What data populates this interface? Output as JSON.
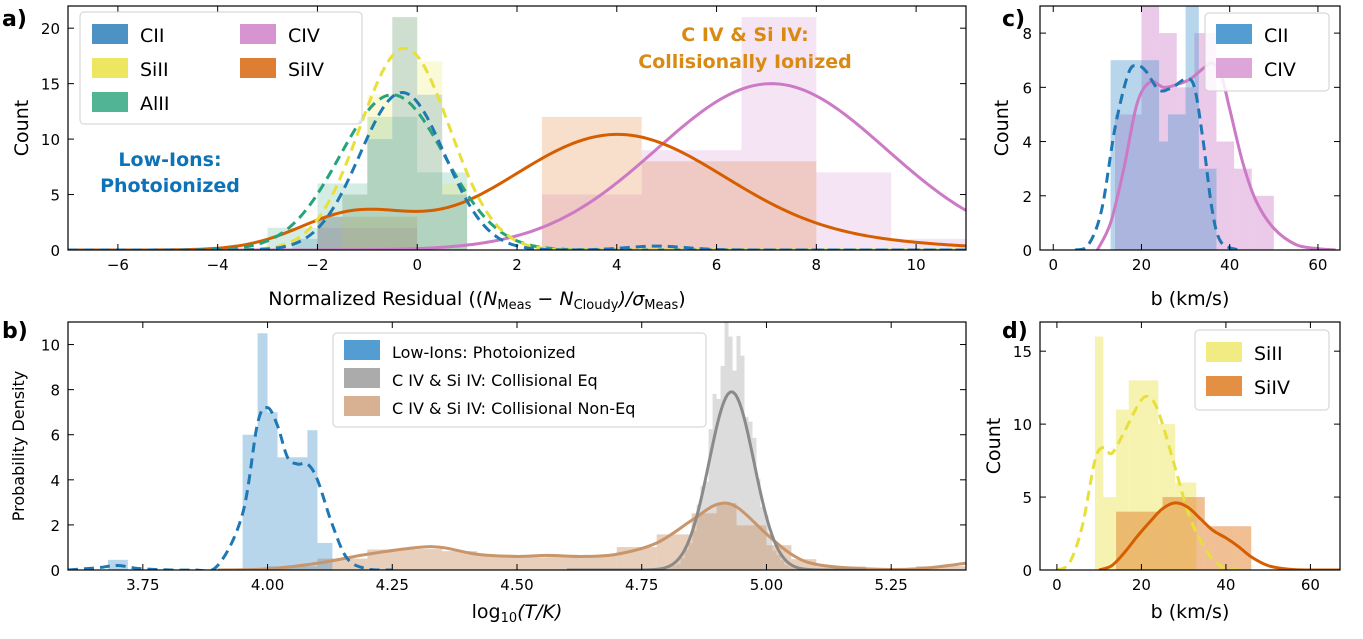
{
  "colors": {
    "CII": "#1f77b4",
    "SiII": "#e8e03a",
    "AlII": "#26a37a",
    "CIV": "#cc79c6",
    "SiIV": "#d55e00",
    "LowIons": "#1f77b4",
    "CollEq": "#8a8a8a",
    "CollNonEq": "#c9956a",
    "bluetext": "#0d72b8",
    "orangetext": "#d98a12"
  },
  "chart_data": [
    {
      "panel": "a)",
      "type": "histogram+kde",
      "xlabel_main": "Normalized Residual ((",
      "xlabel_n": "N",
      "xlabel_sub1": "Meas",
      "xlabel_minus": " − ",
      "xlabel_sub2": "Cloudy",
      "xlabel_sigma": ")/σ",
      "xlabel_sub3": "Meas",
      "xlabel_end": ")",
      "ylabel": "Count",
      "xlim": [
        -7,
        11
      ],
      "ylim": [
        0,
        22
      ],
      "xticks": [
        -6,
        -4,
        -2,
        0,
        2,
        4,
        6,
        8,
        10
      ],
      "xtick_labels": [
        "−6",
        "−4",
        "−2",
        "0",
        "2",
        "4",
        "6",
        "8",
        "10"
      ],
      "yticks": [
        0,
        5,
        10,
        15,
        20
      ],
      "ytick_labels": [
        "0",
        "5",
        "10",
        "15",
        "20"
      ],
      "legend": [
        "CII",
        "SiII",
        "AlII",
        "CIV",
        "SiIV"
      ],
      "annotation_low": [
        "Low-Ions:",
        "Photoionized"
      ],
      "annotation_high": [
        "C IV & Si IV:",
        "Collisionally Ionized"
      ],
      "series": [
        {
          "name": "CII",
          "kde_mean": -0.3,
          "kde_peak": 14.2,
          "kde_sigma": 0.85,
          "bins": [
            [
              -2.5,
              -2.0,
              1
            ],
            [
              -2.0,
              -1.5,
              3
            ],
            [
              -1.5,
              -1.0,
              5
            ],
            [
              -1.0,
              -0.5,
              10
            ],
            [
              -0.5,
              0.0,
              21
            ],
            [
              0.0,
              0.5,
              14
            ],
            [
              0.5,
              1.0,
              5
            ]
          ]
        },
        {
          "name": "SiII",
          "kde_mean": -0.25,
          "kde_peak": 18.2,
          "kde_sigma": 0.9,
          "bins": [
            [
              -1.5,
              -1.0,
              5
            ],
            [
              -1.0,
              -0.5,
              14
            ],
            [
              -0.5,
              0.0,
              21
            ],
            [
              0.0,
              0.5,
              17
            ],
            [
              0.5,
              1.0,
              6
            ]
          ]
        },
        {
          "name": "AlII",
          "kde_mean": -0.5,
          "kde_peak": 14.0,
          "kde_sigma": 1.05,
          "bins": [
            [
              -3.0,
              -2.0,
              2
            ],
            [
              -2.0,
              -1.0,
              6
            ],
            [
              -1.0,
              0.0,
              12
            ],
            [
              0.0,
              1.0,
              7
            ]
          ]
        },
        {
          "name": "CIV",
          "kde_mean": 7.1,
          "kde_peak": 15.0,
          "kde_sigma": 2.3,
          "bins": [
            [
              -2.0,
              0.0,
              2
            ],
            [
              2.5,
              4.5,
              5
            ],
            [
              4.5,
              6.5,
              9
            ],
            [
              6.5,
              8.0,
              21
            ],
            [
              8.0,
              9.5,
              7
            ],
            [
              9.5,
              11.0,
              1
            ]
          ]
        },
        {
          "name": "SiIV",
          "kde_mean": 4.0,
          "kde_peak": 10.4,
          "kde_sigma": 2.2,
          "bins": [
            [
              -2.0,
              0.0,
              3
            ],
            [
              2.5,
              4.5,
              12
            ],
            [
              4.5,
              6.5,
              8
            ],
            [
              6.5,
              8.0,
              8
            ]
          ]
        }
      ]
    },
    {
      "panel": "b)",
      "type": "histogram+kde",
      "xlabel_pre": "log",
      "xlabel_sub": "10",
      "xlabel_post": "(T/K)",
      "ylabel": "Probability Density",
      "xlim": [
        3.6,
        5.4
      ],
      "ylim": [
        0,
        11
      ],
      "xticks": [
        3.75,
        4.0,
        4.25,
        4.5,
        4.75,
        5.0,
        5.25
      ],
      "xtick_labels": [
        "3.75",
        "4.00",
        "4.25",
        "4.50",
        "4.75",
        "5.00",
        "5.25"
      ],
      "yticks": [
        0,
        2,
        4,
        6,
        8,
        10
      ],
      "ytick_labels": [
        "0",
        "2",
        "4",
        "6",
        "8",
        "10"
      ],
      "legend": [
        "Low-Ions: Photoionized",
        "C IV & Si IV: Collisional Eq",
        "C IV & Si IV: Collisional Non-Eq"
      ],
      "series": [
        {
          "name": "Low-Ions: Photoionized",
          "kde_points": [
            [
              3.6,
              0.0
            ],
            [
              3.66,
              0.1
            ],
            [
              3.7,
              0.2
            ],
            [
              3.75,
              0.05
            ],
            [
              3.85,
              0.0
            ],
            [
              3.9,
              0.2
            ],
            [
              3.95,
              2.5
            ],
            [
              3.98,
              6.5
            ],
            [
              4.0,
              7.2
            ],
            [
              4.02,
              6.4
            ],
            [
              4.04,
              5.0
            ],
            [
              4.06,
              4.7
            ],
            [
              4.08,
              4.7
            ],
            [
              4.1,
              4.0
            ],
            [
              4.13,
              2.0
            ],
            [
              4.16,
              0.5
            ],
            [
              4.2,
              0.05
            ],
            [
              4.25,
              0.0
            ]
          ],
          "bins": [
            [
              3.68,
              3.72,
              0.45
            ],
            [
              3.95,
              3.98,
              6.0
            ],
            [
              3.98,
              4.0,
              10.5
            ],
            [
              4.0,
              4.02,
              7.0
            ],
            [
              4.02,
              4.04,
              5.0
            ],
            [
              4.04,
              4.06,
              5.0
            ],
            [
              4.06,
              4.08,
              5.0
            ],
            [
              4.08,
              4.1,
              6.2
            ],
            [
              4.1,
              4.13,
              1.2
            ]
          ]
        },
        {
          "name": "C IV & Si IV: Collisional Eq",
          "kde_mean": 4.93,
          "kde_peak": 7.9,
          "kde_sigma": 0.045
        },
        {
          "name": "C IV & Si IV: Collisional Non-Eq",
          "kde_points": [
            [
              3.9,
              0.0
            ],
            [
              4.0,
              0.05
            ],
            [
              4.1,
              0.3
            ],
            [
              4.2,
              0.7
            ],
            [
              4.3,
              1.0
            ],
            [
              4.35,
              1.0
            ],
            [
              4.42,
              0.7
            ],
            [
              4.5,
              0.6
            ],
            [
              4.56,
              0.65
            ],
            [
              4.63,
              0.6
            ],
            [
              4.7,
              0.7
            ],
            [
              4.78,
              1.2
            ],
            [
              4.85,
              2.2
            ],
            [
              4.9,
              2.9
            ],
            [
              4.94,
              2.8
            ],
            [
              5.0,
              1.6
            ],
            [
              5.05,
              0.7
            ],
            [
              5.1,
              0.25
            ],
            [
              5.2,
              0.05
            ],
            [
              5.3,
              0.05
            ],
            [
              5.4,
              0.3
            ]
          ]
        }
      ]
    },
    {
      "panel": "c)",
      "type": "histogram+kde",
      "xlabel": "b (km/s)",
      "ylabel": "Count",
      "xlim": [
        -3,
        65
      ],
      "ylim": [
        0,
        9
      ],
      "xticks": [
        0,
        20,
        40,
        60
      ],
      "xtick_labels": [
        "0",
        "20",
        "40",
        "60"
      ],
      "yticks": [
        0,
        2,
        4,
        6,
        8
      ],
      "ytick_labels": [
        "0",
        "2",
        "4",
        "6",
        "8"
      ],
      "legend": [
        "CII",
        "CIV"
      ],
      "series": [
        {
          "name": "CII",
          "kde_points": [
            [
              5,
              0.0
            ],
            [
              8,
              0.2
            ],
            [
              11,
              1.5
            ],
            [
              14,
              4.5
            ],
            [
              17,
              6.5
            ],
            [
              19,
              6.8
            ],
            [
              21,
              6.6
            ],
            [
              24,
              5.9
            ],
            [
              27,
              6.0
            ],
            [
              30,
              6.3
            ],
            [
              32,
              6.0
            ],
            [
              34,
              4.0
            ],
            [
              36,
              1.5
            ],
            [
              38,
              0.3
            ],
            [
              42,
              0.0
            ]
          ],
          "bins": [
            [
              13,
              20,
              7
            ],
            [
              20,
              24,
              7
            ],
            [
              24,
              26,
              4
            ],
            [
              26,
              30,
              5
            ],
            [
              30,
              33,
              9
            ],
            [
              33,
              37,
              3
            ]
          ]
        },
        {
          "name": "CIV",
          "kde_points": [
            [
              10,
              0.0
            ],
            [
              13,
              1.0
            ],
            [
              16,
              3.0
            ],
            [
              19,
              5.4
            ],
            [
              22,
              6.2
            ],
            [
              25,
              6.0
            ],
            [
              28,
              6.1
            ],
            [
              31,
              6.3
            ],
            [
              34,
              6.7
            ],
            [
              36,
              6.9
            ],
            [
              38,
              6.5
            ],
            [
              40,
              5.2
            ],
            [
              43,
              3.2
            ],
            [
              46,
              1.8
            ],
            [
              50,
              0.8
            ],
            [
              55,
              0.2
            ],
            [
              60,
              0.05
            ],
            [
              64,
              0.0
            ]
          ],
          "bins": [
            [
              14,
              20,
              5
            ],
            [
              20,
              24,
              9
            ],
            [
              24,
              28,
              8
            ],
            [
              28,
              32,
              6
            ],
            [
              32,
              37,
              8
            ],
            [
              37,
              41,
              4
            ],
            [
              41,
              45,
              3
            ],
            [
              45,
              50,
              2
            ]
          ]
        }
      ]
    },
    {
      "panel": "d)",
      "type": "histogram+kde",
      "xlabel": "b (km/s)",
      "ylabel": "Count",
      "xlim": [
        -4,
        67
      ],
      "ylim": [
        0,
        17
      ],
      "xticks": [
        0,
        20,
        40,
        60
      ],
      "xtick_labels": [
        "0",
        "20",
        "40",
        "60"
      ],
      "yticks": [
        0,
        5,
        10,
        15
      ],
      "ytick_labels": [
        "0",
        "5",
        "10",
        "15"
      ],
      "legend": [
        "SiII",
        "SiIV"
      ],
      "series": [
        {
          "name": "SiII",
          "kde_points": [
            [
              0,
              0.0
            ],
            [
              3,
              0.5
            ],
            [
              6,
              3.0
            ],
            [
              9,
              7.5
            ],
            [
              11,
              8.4
            ],
            [
              13,
              8.0
            ],
            [
              16,
              9.5
            ],
            [
              19,
              11.2
            ],
            [
              21,
              11.9
            ],
            [
              23,
              11.5
            ],
            [
              25,
              10.0
            ],
            [
              28,
              7.0
            ],
            [
              31,
              4.0
            ],
            [
              34,
              2.0
            ],
            [
              37,
              0.7
            ],
            [
              40,
              0.1
            ],
            [
              43,
              0.0
            ]
          ],
          "bins": [
            [
              9,
              11,
              16
            ],
            [
              11,
              14,
              5
            ],
            [
              14,
              17,
              11
            ],
            [
              17,
              24,
              13
            ],
            [
              24,
              28,
              10
            ],
            [
              28,
              33,
              6
            ]
          ]
        },
        {
          "name": "SiIV",
          "kde_points": [
            [
              10,
              0.0
            ],
            [
              13,
              0.3
            ],
            [
              16,
              1.2
            ],
            [
              19,
              2.3
            ],
            [
              22,
              3.3
            ],
            [
              25,
              4.2
            ],
            [
              28,
              4.6
            ],
            [
              31,
              4.3
            ],
            [
              34,
              3.5
            ],
            [
              37,
              2.7
            ],
            [
              40,
              2.2
            ],
            [
              43,
              1.6
            ],
            [
              46,
              0.9
            ],
            [
              50,
              0.3
            ],
            [
              55,
              0.05
            ],
            [
              60,
              0.0
            ],
            [
              67,
              0.0
            ]
          ],
          "bins": [
            [
              14,
              20,
              4
            ],
            [
              20,
              25,
              4
            ],
            [
              25,
              35,
              5
            ],
            [
              35,
              42,
              3
            ],
            [
              42,
              46,
              3
            ]
          ]
        }
      ]
    }
  ]
}
